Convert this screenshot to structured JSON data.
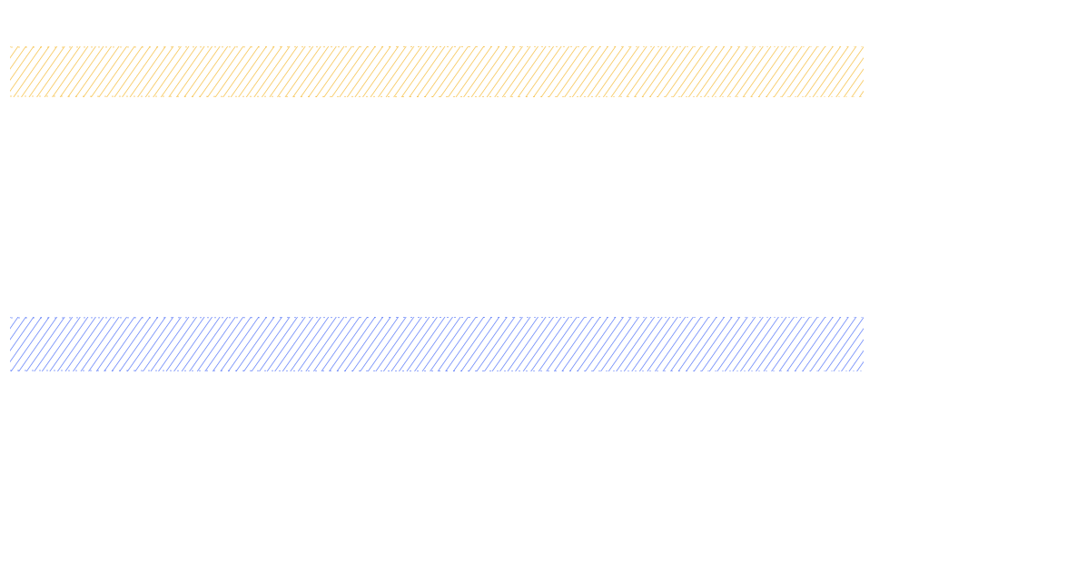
{
  "canvas": {
    "background": "#ffffff"
  },
  "shapes": [
    {
      "id": "shape-1",
      "label": "",
      "fill_style": "hachure",
      "stroke_color": "#f5b82e",
      "icon": "hatched-rectangle"
    },
    {
      "id": "shape-2",
      "label": "",
      "fill_style": "hachure",
      "stroke_color": "#4a6cf7",
      "icon": "hatched-rectangle"
    }
  ]
}
